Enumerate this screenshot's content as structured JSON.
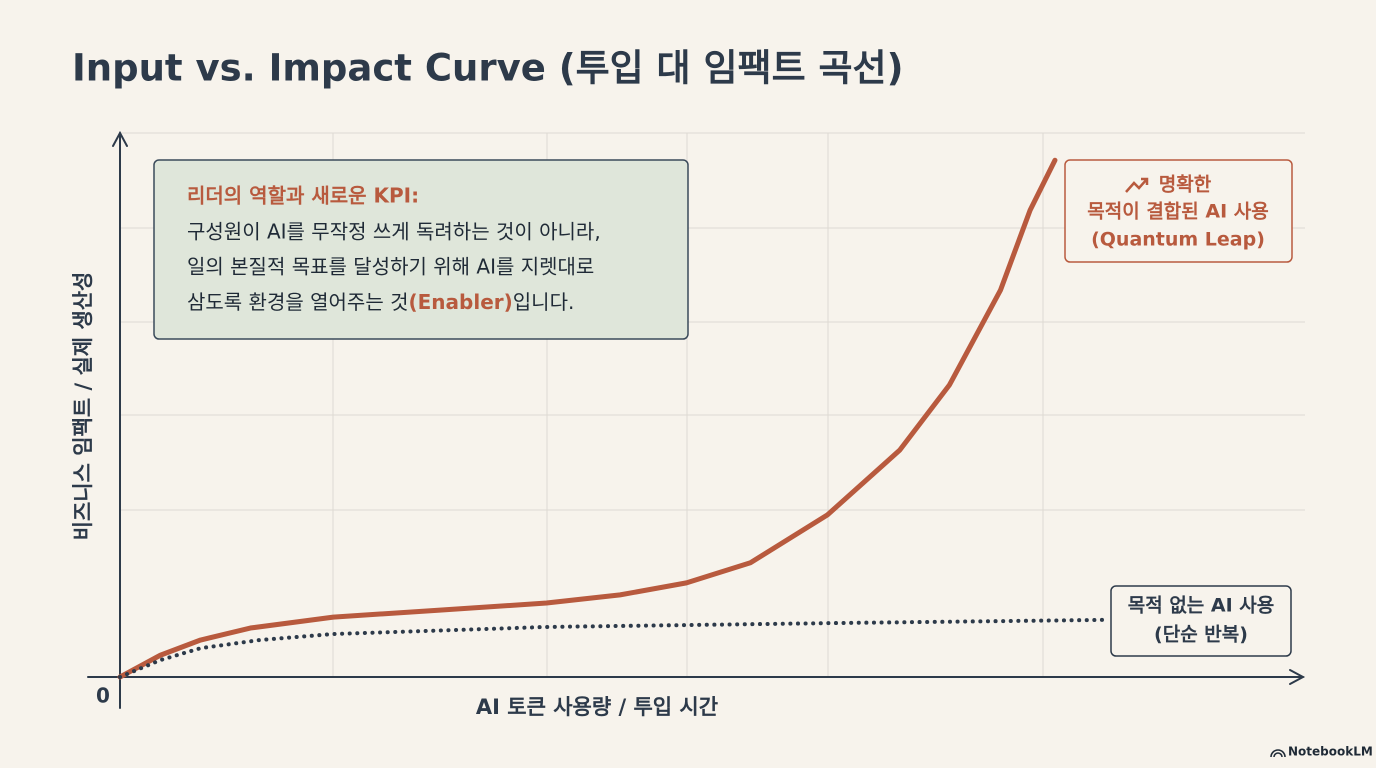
{
  "chart_data": {
    "type": "line",
    "title": "Input vs. Impact Curve (투입 대 임팩트 곡선)",
    "x_label": "AI 토큰 사용량 / 투입 시간",
    "y_label": "비즈니스 임팩트 / 실제 생산성",
    "xlim": [
      0,
      100
    ],
    "ylim": [
      0,
      100
    ],
    "xticks": [
      0
    ],
    "series": [
      {
        "label_lines": [
          "명확한",
          "목적이 결합된 AI 사용",
          "(Quantum Leap)"
        ],
        "color": "#b85a3e",
        "style": "solid",
        "x": [
          0,
          3.4,
          6.8,
          11.0,
          18.0,
          27.0,
          36.0,
          42.2,
          47.8,
          53.2,
          59.7,
          65.8,
          70.0,
          74.3,
          76.8,
          78.9
        ],
        "values": [
          0,
          4.0,
          6.8,
          9.0,
          11.0,
          12.3,
          13.6,
          15.1,
          17.3,
          21.0,
          29.8,
          41.7,
          53.7,
          71.1,
          85.8,
          95.0
        ]
      },
      {
        "label_lines": [
          "목적 없는 AI 사용",
          "(단순 반복)"
        ],
        "color": "#2d3a4a",
        "style": "dotted",
        "x": [
          0,
          3.4,
          6.8,
          11.8,
          18.0,
          36.0,
          59.7,
          83.1
        ],
        "values": [
          0,
          3.1,
          5.3,
          6.8,
          7.9,
          9.2,
          9.9,
          10.5
        ]
      }
    ],
    "callout": {
      "heading": "리더의 역할과 새로운 KPI:",
      "lines": [
        "구성원이 AI를 무작정 쓰게 독려하는 것이 아니라,",
        "일의 본질적 목표를 달성하기 위해 AI를 지렛대로"
      ],
      "last_line": [
        "삼도록 환경을 열어주는 것",
        "(Enabler)",
        "입니다."
      ]
    },
    "footer": "NotebookLM"
  }
}
